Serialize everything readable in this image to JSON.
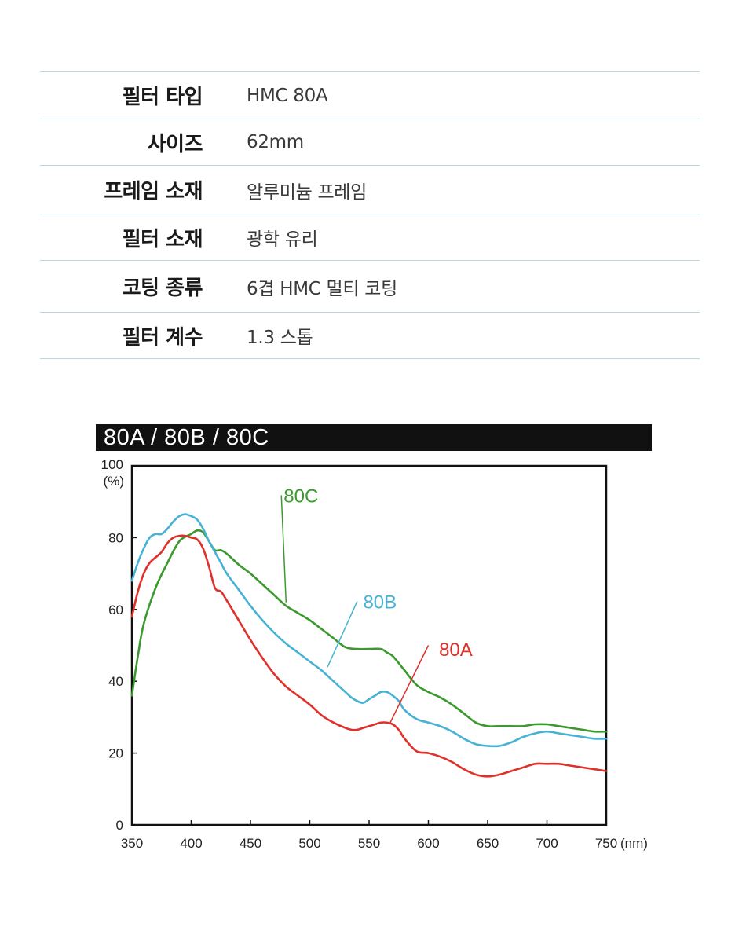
{
  "spec_table": {
    "rows": [
      {
        "label": "필터 타입",
        "value": "HMC 80A"
      },
      {
        "label": "사이즈",
        "value": "62mm"
      },
      {
        "label": "프레임 소재",
        "value": "알루미늄 프레임"
      },
      {
        "label": "필터 소재",
        "value": "광학 유리"
      },
      {
        "label": "코팅 종류",
        "value": "6겹 HMC 멀티 코팅"
      },
      {
        "label": "필터 계수",
        "value": "1.3 스톱"
      }
    ]
  },
  "chart_data": {
    "type": "line",
    "title": "80A / 80B / 80C",
    "xlabel": "(nm)",
    "ylabel": "(%)",
    "xlim": [
      350,
      750
    ],
    "ylim": [
      0,
      100
    ],
    "x_ticks": [
      350,
      400,
      450,
      500,
      550,
      600,
      650,
      700,
      750
    ],
    "y_ticks": [
      0,
      20,
      40,
      60,
      80,
      100
    ],
    "grid": false,
    "legend": "inline labels",
    "series": [
      {
        "name": "80C",
        "color": "#3b9a2e",
        "x": [
          350,
          355,
          360,
          370,
          380,
          390,
          400,
          405,
          410,
          415,
          420,
          425,
          430,
          440,
          450,
          460,
          470,
          480,
          490,
          500,
          510,
          520,
          530,
          540,
          550,
          560,
          565,
          570,
          580,
          590,
          600,
          610,
          620,
          630,
          640,
          650,
          660,
          670,
          680,
          690,
          700,
          710,
          720,
          730,
          740,
          750
        ],
        "values": [
          36,
          47,
          56,
          66,
          73,
          79,
          81,
          82,
          81.5,
          79,
          76.5,
          76.5,
          75.5,
          72.5,
          70,
          67,
          64,
          61,
          59,
          57,
          54.5,
          52,
          49.5,
          49,
          49,
          49,
          48,
          47,
          43,
          39,
          37,
          35.5,
          33.5,
          31,
          28.5,
          27.5,
          27.5,
          27.5,
          27.5,
          28,
          28,
          27.5,
          27,
          26.5,
          26,
          26
        ]
      },
      {
        "name": "80B",
        "color": "#47b2d4",
        "x": [
          350,
          355,
          360,
          365,
          370,
          375,
          380,
          385,
          390,
          395,
          400,
          405,
          410,
          415,
          420,
          425,
          430,
          440,
          450,
          460,
          470,
          480,
          490,
          500,
          510,
          520,
          530,
          535,
          540,
          545,
          550,
          555,
          560,
          565,
          570,
          575,
          580,
          590,
          600,
          610,
          620,
          630,
          640,
          650,
          660,
          670,
          680,
          690,
          700,
          710,
          720,
          730,
          740,
          750
        ],
        "values": [
          68,
          73,
          77,
          80,
          81,
          81,
          82.5,
          84.5,
          86,
          86.5,
          86,
          85,
          82.5,
          79,
          76,
          73,
          70,
          65.5,
          61,
          57,
          53.5,
          50.5,
          48,
          45.5,
          43,
          40,
          37,
          35.5,
          34.5,
          34,
          35,
          36,
          37,
          37,
          36,
          34.5,
          32,
          29.5,
          28.5,
          27.5,
          26,
          24,
          22.5,
          22,
          22,
          23,
          24.5,
          25.5,
          26,
          25.5,
          25,
          24.5,
          24,
          24
        ]
      },
      {
        "name": "80A",
        "color": "#e0302a",
        "x": [
          350,
          355,
          360,
          365,
          370,
          375,
          380,
          385,
          390,
          395,
          400,
          405,
          410,
          415,
          420,
          425,
          430,
          440,
          450,
          460,
          470,
          480,
          490,
          500,
          510,
          520,
          530,
          535,
          540,
          545,
          550,
          555,
          560,
          565,
          570,
          575,
          580,
          590,
          600,
          610,
          620,
          630,
          640,
          650,
          660,
          670,
          680,
          690,
          700,
          710,
          720,
          730,
          740,
          750
        ],
        "values": [
          58,
          65,
          70,
          73,
          74.5,
          76,
          78.5,
          80,
          80.5,
          80.5,
          80,
          79.5,
          77,
          72,
          66,
          65,
          62.5,
          57,
          51.5,
          46.5,
          42,
          38.5,
          36,
          33.5,
          30.5,
          28.5,
          27,
          26.5,
          26.5,
          27,
          27.5,
          28,
          28.5,
          28.5,
          28,
          26.5,
          24,
          20.5,
          20,
          19,
          17.5,
          15.5,
          14,
          13.5,
          14,
          15,
          16,
          17,
          17,
          17,
          16.5,
          16,
          15.5,
          15
        ]
      }
    ]
  }
}
